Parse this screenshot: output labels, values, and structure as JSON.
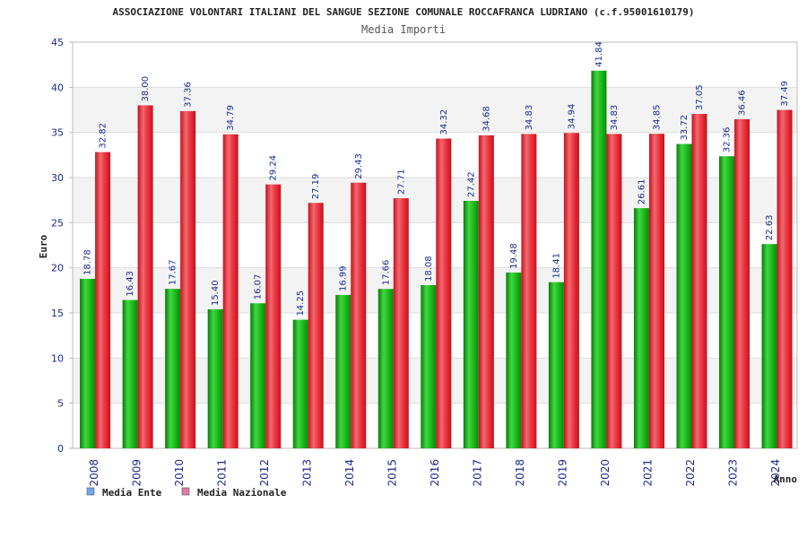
{
  "chart_data": {
    "type": "bar",
    "title": "ASSOCIAZIONE VOLONTARI ITALIANI DEL SANGUE SEZIONE COMUNALE ROCCAFRANCA LUDRIANO (c.f.95001610179)",
    "subtitle": "Media Importi",
    "xlabel": "Anno",
    "ylabel": "Euro",
    "ylim": [
      0,
      45
    ],
    "yticks": [
      0,
      5,
      10,
      15,
      20,
      25,
      30,
      35,
      40,
      45
    ],
    "grid": true,
    "legend_position": "bottom-left",
    "categories": [
      "2008",
      "2009",
      "2010",
      "2011",
      "2012",
      "2013",
      "2014",
      "2015",
      "2016",
      "2017",
      "2018",
      "2019",
      "2020",
      "2021",
      "2022",
      "2023",
      "2024"
    ],
    "series": [
      {
        "name": "Media Ente",
        "legend_color": "#6fa8e8",
        "bar_color": "#19b419",
        "values": [
          18.78,
          16.43,
          17.67,
          15.4,
          16.07,
          14.25,
          16.99,
          17.66,
          18.08,
          27.42,
          19.48,
          18.41,
          41.84,
          26.61,
          33.72,
          32.36,
          22.63
        ],
        "labels": [
          "18.78",
          "16.43",
          "17.67",
          "15.40",
          "16.07",
          "14.25",
          "16.99",
          "17.66",
          "18.08",
          "27.42",
          "19.48",
          "18.41",
          "41.84",
          "26.61",
          "33.72",
          "32.36",
          "22.63"
        ]
      },
      {
        "name": "Media Nazionale",
        "legend_color": "#e07aa8",
        "bar_color": "#e8202a",
        "values": [
          32.82,
          38.0,
          37.36,
          34.79,
          29.24,
          27.19,
          29.43,
          27.71,
          34.32,
          34.68,
          34.83,
          34.94,
          34.83,
          34.85,
          37.05,
          36.46,
          37.49
        ],
        "labels": [
          "32.82",
          "38.00",
          "37.36",
          "34.79",
          "29.24",
          "27.19",
          "29.43",
          "27.71",
          "34.32",
          "34.68",
          "34.83",
          "34.94",
          "34.83",
          "34.85",
          "37.05",
          "36.46",
          "37.49"
        ]
      }
    ]
  },
  "colors": {
    "title_text": "#222222",
    "ytick_text": "#1a2a8c",
    "xtick_text": "#1a2a8c",
    "data_label_text": "#1a2a8c",
    "band_light": "#f3f3f3",
    "band_white": "#ffffff",
    "grid_line": "#dddddd",
    "axis_line": "#bbbbbb"
  }
}
